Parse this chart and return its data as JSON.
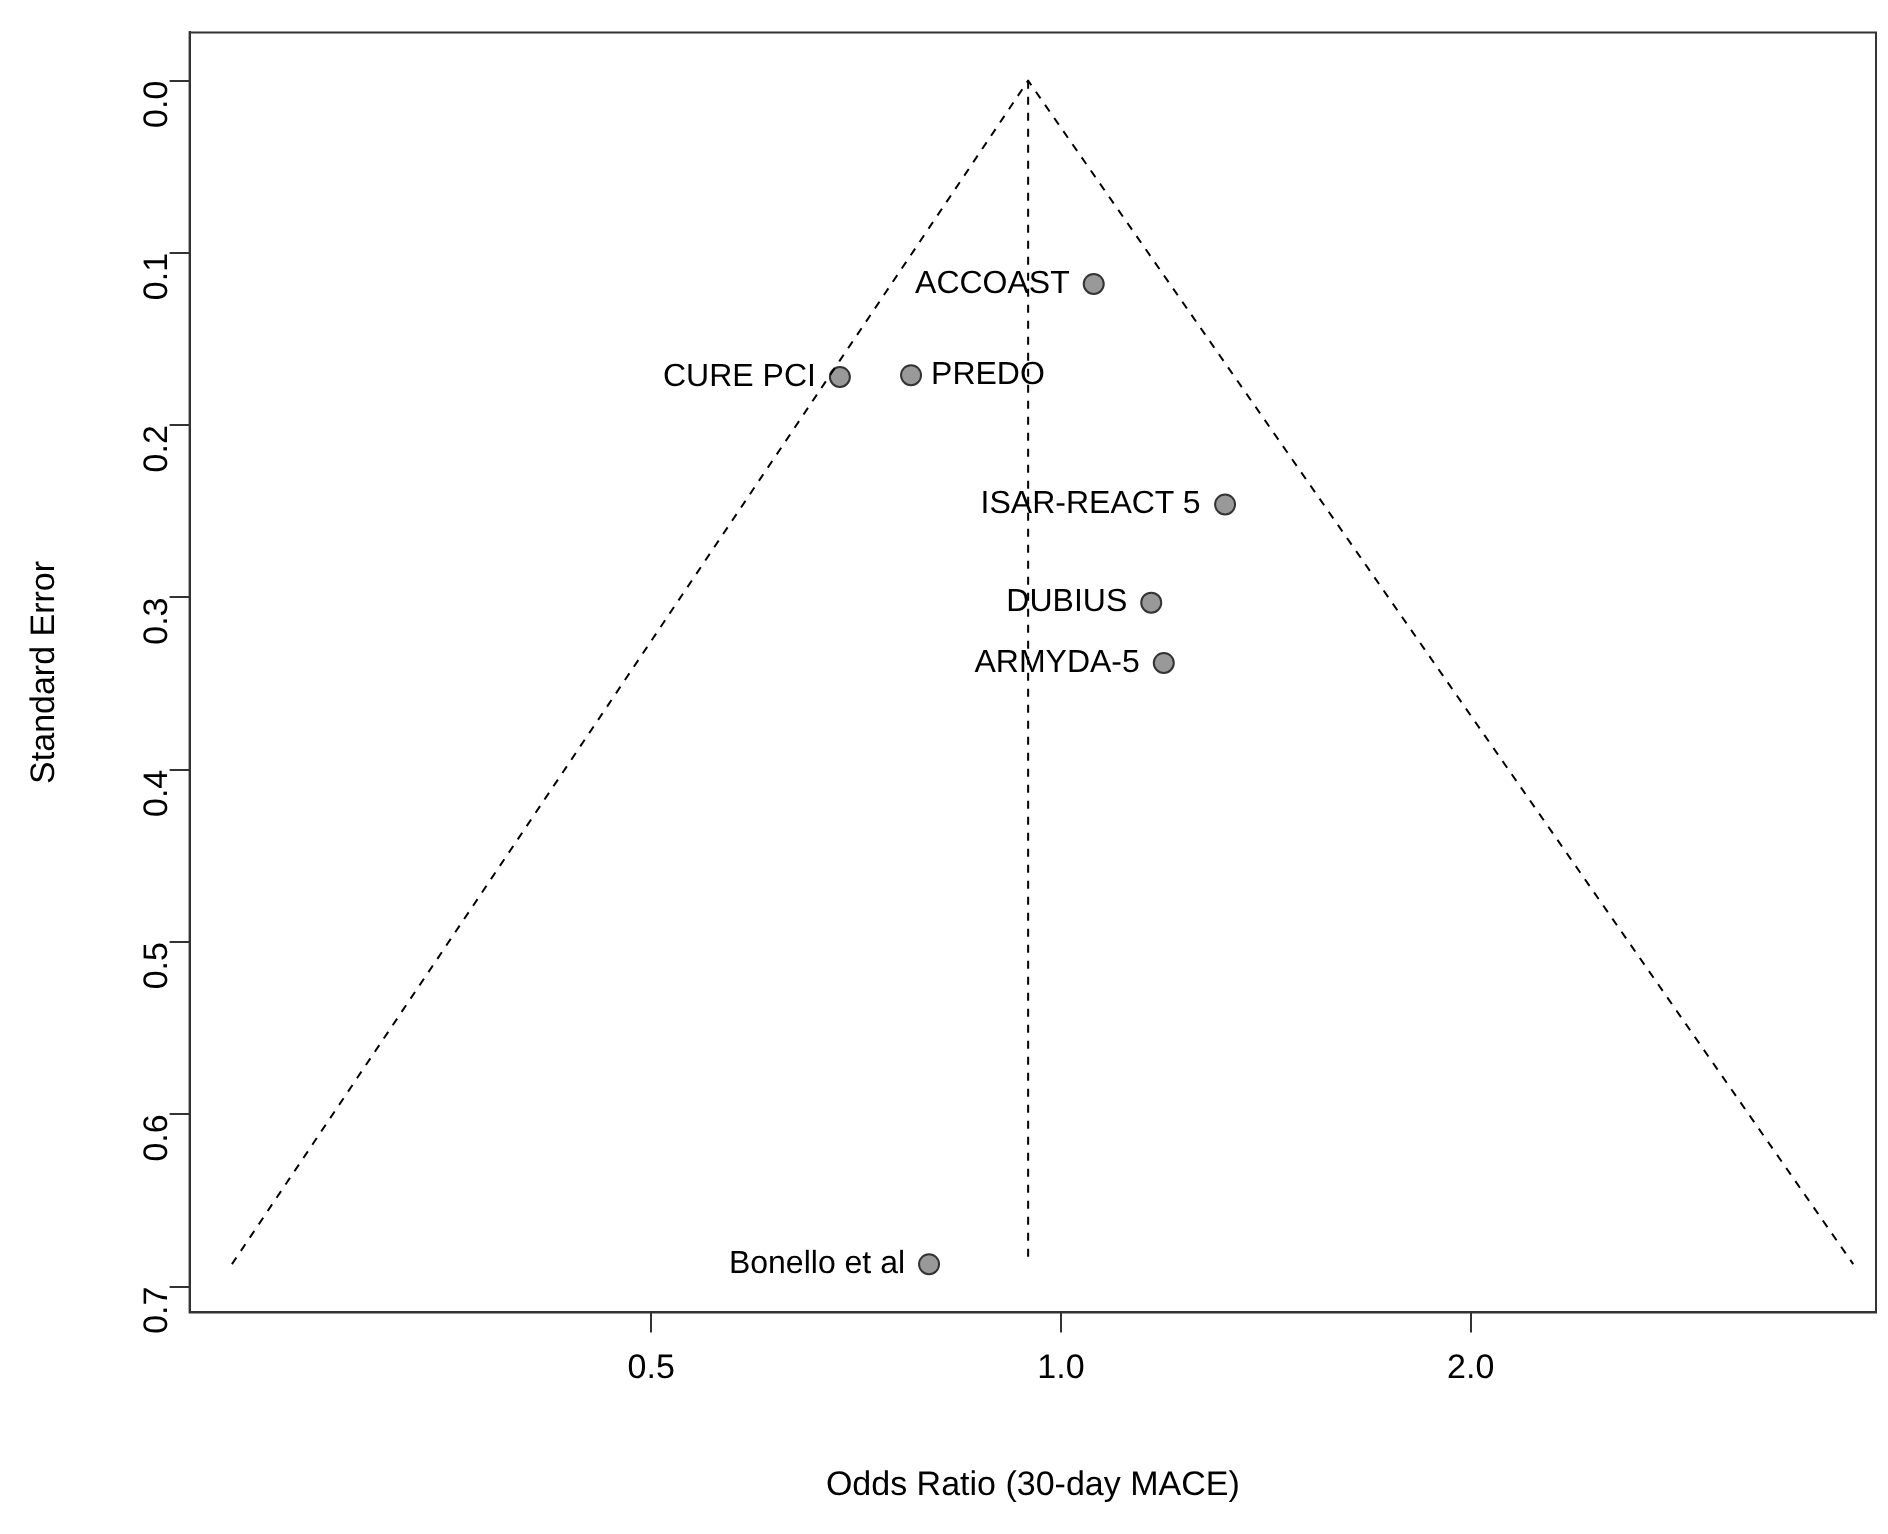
{
  "chart_data": {
    "type": "scatter",
    "xlabel": "Odds Ratio (30-day MACE)",
    "ylabel": "Standard Error",
    "log": "x",
    "xlim": [
      0.229,
      3.97
    ],
    "xticks": [
      0.5,
      {
        "value": 1,
        "label": "1.0"
      },
      {
        "value": 2,
        "label": "2.0"
      }
    ],
    "ylim": [
      0.715,
      -0.028
    ],
    "yticks": [
      {
        "value": 0,
        "label": "0.0"
      },
      0.1,
      0.2,
      0.3,
      0.4,
      0.5,
      0.6,
      0.7
    ],
    "grid": false,
    "legend": false,
    "marker": "circle",
    "series": [
      {
        "type": "line",
        "color": "#000000",
        "line_style": "dashed",
        "marker": "none",
        "x": [
          0.246,
          0.946,
          3.82
        ],
        "values": [
          0.687,
          0,
          0.687
        ]
      },
      {
        "type": "line",
        "color": "#000000",
        "line_style": "dashed",
        "marker": "none",
        "x": [
          0.946,
          0.946
        ],
        "values": [
          0,
          0.687
        ]
      },
      {
        "name": "ACCOAST",
        "color": "#999999",
        "x": [
          1.057
        ],
        "values": [
          0.118
        ]
      },
      {
        "name": "PREDO",
        "color": "#999999",
        "x": [
          0.776
        ],
        "values": [
          0.171
        ]
      },
      {
        "name": "CURE PCI",
        "color": "#999999",
        "x": [
          0.688
        ],
        "values": [
          0.172
        ]
      },
      {
        "name": "ISAR-REACT 5",
        "color": "#999999",
        "x": [
          1.32
        ],
        "values": [
          0.246
        ]
      },
      {
        "name": "DUBIUS",
        "color": "#999999",
        "x": [
          1.165
        ],
        "values": [
          0.303
        ]
      },
      {
        "name": "ARMYDA-5",
        "color": "#999999",
        "x": [
          1.19
        ],
        "values": [
          0.338
        ]
      },
      {
        "name": "Bonello et al",
        "color": "#999999",
        "x": [
          0.8
        ],
        "values": [
          0.687
        ]
      }
    ]
  }
}
